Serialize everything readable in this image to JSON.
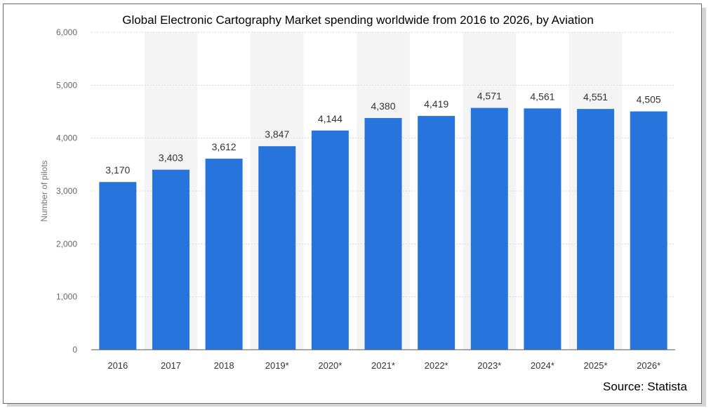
{
  "chart_data": {
    "type": "bar",
    "title": "Global Electronic Cartography Market spending worldwide from 2016 to 2026, by Aviation",
    "xlabel": "",
    "ylabel": "Number of pilots",
    "categories": [
      "2016",
      "2017",
      "2018",
      "2019*",
      "2020*",
      "2021*",
      "2022*",
      "2023*",
      "2024*",
      "2025*",
      "2026*"
    ],
    "values": [
      3170,
      3403,
      3612,
      3847,
      4144,
      4380,
      4419,
      4571,
      4561,
      4551,
      4505
    ],
    "value_labels": [
      "3,170",
      "3,403",
      "3,612",
      "3,847",
      "4,144",
      "4,380",
      "4,419",
      "4,571",
      "4,561",
      "4,551",
      "4,505"
    ],
    "ylim": [
      0,
      6000
    ],
    "yticks": [
      0,
      1000,
      2000,
      3000,
      4000,
      5000,
      6000
    ],
    "ytick_labels": [
      "0",
      "1,000",
      "2,000",
      "3,000",
      "4,000",
      "5,000",
      "6,000"
    ],
    "grid": true,
    "bar_color": "#2775dc",
    "grid_color": "#d9d9d9",
    "band_color": "#f4f4f4",
    "source": "Source: Statista"
  }
}
